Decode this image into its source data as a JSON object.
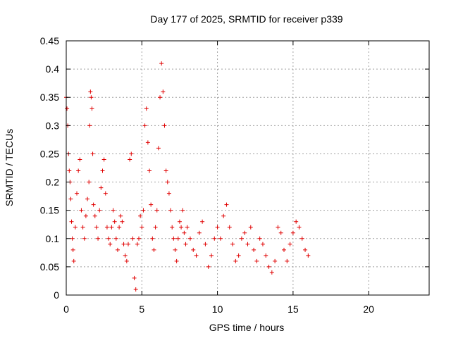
{
  "chart_data": {
    "type": "scatter",
    "title": "Day 177 of 2025, SRMTID for receiver p339",
    "xlabel": "GPS time / hours",
    "ylabel": "SRMTID / TECUs",
    "xlim": [
      0,
      24
    ],
    "ylim": [
      0,
      0.45
    ],
    "x_ticks": [
      0,
      5,
      10,
      15,
      20
    ],
    "y_ticks": [
      0,
      0.05,
      0.1,
      0.15,
      0.2,
      0.25,
      0.3,
      0.35,
      0.4,
      0.45
    ],
    "x_tick_labels": [
      "0",
      "5",
      "10",
      "15",
      "20"
    ],
    "y_tick_labels": [
      "0",
      "0.05",
      "0.1",
      "0.15",
      "0.2",
      "0.25",
      "0.3",
      "0.35",
      "0.4",
      "0.45"
    ],
    "grid": true,
    "marker": "+",
    "marker_color": "#e00000",
    "data_range_hours": [
      0,
      16
    ],
    "series": [
      {
        "name": "SRMTID",
        "x": [
          0.0,
          0.05,
          0.1,
          0.15,
          0.2,
          0.25,
          0.3,
          0.35,
          0.4,
          0.45,
          0.5,
          0.6,
          0.7,
          0.8,
          0.9,
          1.0,
          1.1,
          1.2,
          1.3,
          1.4,
          1.5,
          1.55,
          1.6,
          1.65,
          1.7,
          1.75,
          1.8,
          1.9,
          2.0,
          2.1,
          2.2,
          2.3,
          2.4,
          2.5,
          2.6,
          2.7,
          2.8,
          2.9,
          3.0,
          3.1,
          3.2,
          3.3,
          3.4,
          3.5,
          3.6,
          3.7,
          3.8,
          3.9,
          4.0,
          4.1,
          4.2,
          4.3,
          4.4,
          4.5,
          4.6,
          4.7,
          4.8,
          4.9,
          5.0,
          5.1,
          5.2,
          5.3,
          5.4,
          5.5,
          5.6,
          5.7,
          5.8,
          5.9,
          6.0,
          6.1,
          6.2,
          6.3,
          6.4,
          6.5,
          6.6,
          6.7,
          6.8,
          6.9,
          7.0,
          7.1,
          7.2,
          7.3,
          7.4,
          7.5,
          7.6,
          7.7,
          7.8,
          7.9,
          8.0,
          8.2,
          8.4,
          8.6,
          8.8,
          9.0,
          9.2,
          9.4,
          9.6,
          9.8,
          10.0,
          10.2,
          10.4,
          10.6,
          10.8,
          11.0,
          11.2,
          11.4,
          11.6,
          11.8,
          12.0,
          12.2,
          12.4,
          12.6,
          12.8,
          13.0,
          13.2,
          13.4,
          13.6,
          13.8,
          14.0,
          14.2,
          14.4,
          14.6,
          14.8,
          15.0,
          15.2,
          15.4,
          15.6,
          15.8,
          16.0
        ],
        "y": [
          0.35,
          0.33,
          0.3,
          0.25,
          0.22,
          0.2,
          0.17,
          0.13,
          0.1,
          0.08,
          0.06,
          0.12,
          0.18,
          0.22,
          0.24,
          0.15,
          0.12,
          0.1,
          0.14,
          0.17,
          0.2,
          0.3,
          0.36,
          0.35,
          0.33,
          0.25,
          0.16,
          0.14,
          0.12,
          0.1,
          0.15,
          0.19,
          0.22,
          0.24,
          0.18,
          0.12,
          0.1,
          0.09,
          0.12,
          0.15,
          0.13,
          0.1,
          0.08,
          0.12,
          0.14,
          0.13,
          0.09,
          0.07,
          0.06,
          0.09,
          0.24,
          0.25,
          0.1,
          0.03,
          0.01,
          0.09,
          0.1,
          0.14,
          0.12,
          0.15,
          0.3,
          0.33,
          0.27,
          0.22,
          0.16,
          0.1,
          0.08,
          0.12,
          0.15,
          0.26,
          0.35,
          0.41,
          0.36,
          0.3,
          0.22,
          0.2,
          0.18,
          0.15,
          0.12,
          0.1,
          0.08,
          0.06,
          0.1,
          0.13,
          0.12,
          0.15,
          0.11,
          0.09,
          0.12,
          0.1,
          0.08,
          0.07,
          0.11,
          0.13,
          0.09,
          0.05,
          0.07,
          0.1,
          0.12,
          0.1,
          0.14,
          0.16,
          0.12,
          0.09,
          0.06,
          0.07,
          0.1,
          0.11,
          0.09,
          0.12,
          0.08,
          0.06,
          0.1,
          0.09,
          0.07,
          0.05,
          0.04,
          0.06,
          0.12,
          0.11,
          0.08,
          0.06,
          0.09,
          0.11,
          0.13,
          0.12,
          0.1,
          0.08,
          0.07
        ]
      }
    ]
  }
}
